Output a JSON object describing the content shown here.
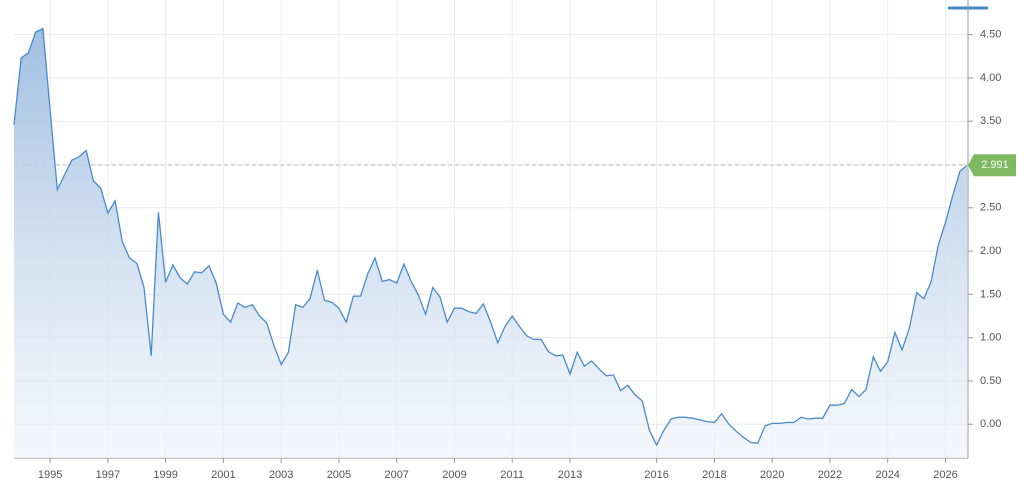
{
  "chart_data": {
    "type": "area",
    "x": [
      1993.75,
      1994,
      1994.25,
      1994.5,
      1994.75,
      1995,
      1995.25,
      1995.5,
      1995.75,
      1996,
      1996.25,
      1996.5,
      1996.75,
      1997,
      1997.25,
      1997.5,
      1997.75,
      1998,
      1998.25,
      1998.5,
      1998.75,
      1999,
      1999.25,
      1999.5,
      1999.75,
      2000,
      2000.25,
      2000.5,
      2000.75,
      2001,
      2001.25,
      2001.5,
      2001.75,
      2002,
      2002.25,
      2002.5,
      2002.75,
      2003,
      2003.25,
      2003.5,
      2003.75,
      2004,
      2004.25,
      2004.5,
      2004.75,
      2005,
      2005.25,
      2005.5,
      2005.75,
      2006,
      2006.25,
      2006.5,
      2006.75,
      2007,
      2007.25,
      2007.5,
      2007.75,
      2008,
      2008.25,
      2008.5,
      2008.75,
      2009,
      2009.25,
      2009.5,
      2009.75,
      2010,
      2010.25,
      2010.5,
      2010.75,
      2011,
      2011.25,
      2011.5,
      2011.75,
      2012,
      2012.25,
      2012.5,
      2012.75,
      2013,
      2013.25,
      2013.5,
      2013.75,
      2014,
      2014.25,
      2014.5,
      2014.75,
      2015,
      2015.25,
      2015.5,
      2015.75,
      2016,
      2016.25,
      2016.5,
      2016.75,
      2017,
      2017.25,
      2017.5,
      2017.75,
      2018,
      2018.25,
      2018.5,
      2018.75,
      2019,
      2019.25,
      2019.5,
      2019.75,
      2020,
      2020.25,
      2020.5,
      2020.75,
      2021,
      2021.25,
      2021.5,
      2021.75,
      2022,
      2022.25,
      2022.5,
      2022.75,
      2023,
      2023.25,
      2023.5,
      2023.75,
      2024,
      2024.25,
      2024.5,
      2024.75,
      2025,
      2025.25,
      2025.5,
      2025.75,
      2026,
      2026.25,
      2026.5,
      2026.75
    ],
    "series": [
      {
        "color": "#4a8ac9",
        "values": [
          3.46,
          4.23,
          4.29,
          4.53,
          4.57,
          3.63,
          2.71,
          2.88,
          3.05,
          3.09,
          3.16,
          2.81,
          2.73,
          2.44,
          2.58,
          2.11,
          1.92,
          1.86,
          1.58,
          0.79,
          2.45,
          1.64,
          1.84,
          1.69,
          1.62,
          1.76,
          1.75,
          1.83,
          1.63,
          1.27,
          1.18,
          1.4,
          1.35,
          1.38,
          1.25,
          1.17,
          0.91,
          0.69,
          0.83,
          1.38,
          1.35,
          1.45,
          1.78,
          1.43,
          1.41,
          1.34,
          1.18,
          1.48,
          1.48,
          1.74,
          1.92,
          1.65,
          1.67,
          1.63,
          1.85,
          1.65,
          1.49,
          1.27,
          1.58,
          1.47,
          1.18,
          1.34,
          1.34,
          1.3,
          1.28,
          1.39,
          1.18,
          0.94,
          1.13,
          1.25,
          1.13,
          1.02,
          0.98,
          0.98,
          0.84,
          0.79,
          0.8,
          0.58,
          0.83,
          0.67,
          0.73,
          0.64,
          0.56,
          0.57,
          0.39,
          0.45,
          0.34,
          0.27,
          -0.07,
          -0.24,
          -0.07,
          0.06,
          0.08,
          0.08,
          0.07,
          0.05,
          0.03,
          0.02,
          0.12,
          0.0,
          -0.08,
          -0.15,
          -0.21,
          -0.22,
          -0.02,
          0.01,
          0.01,
          0.02,
          0.02,
          0.08,
          0.06,
          0.07,
          0.07,
          0.22,
          0.22,
          0.24,
          0.4,
          0.32,
          0.4,
          0.78,
          0.61,
          0.72,
          1.06,
          0.86,
          1.11,
          1.52,
          1.45,
          1.64,
          2.07,
          2.33,
          2.64,
          2.92,
          2.991
        ]
      }
    ],
    "xlim": [
      1993.75,
      2026.78
    ],
    "xticks": [
      1995,
      1997,
      1999,
      2001,
      2003,
      2005,
      2007,
      2009,
      2011,
      2013,
      2016,
      2018,
      2020,
      2022,
      2024,
      2026
    ],
    "ylim": [
      -0.39,
      4.9
    ],
    "yticks": [
      {
        "value": 0,
        "label": "0.00"
      },
      {
        "value": 0.5,
        "label": "0.50"
      },
      {
        "value": 1,
        "label": "1.00"
      },
      {
        "value": 1.5,
        "label": "1.50"
      },
      {
        "value": 2,
        "label": "2.00"
      },
      {
        "value": 2.5,
        "label": "2.50"
      },
      {
        "value": 3,
        "label": "3.00"
      },
      {
        "value": 3.5,
        "label": "3.50"
      },
      {
        "value": 4,
        "label": "4.00"
      },
      {
        "value": 4.5,
        "label": "4.50"
      }
    ],
    "grid": true,
    "last_value_color": "#7cb960"
  }
}
